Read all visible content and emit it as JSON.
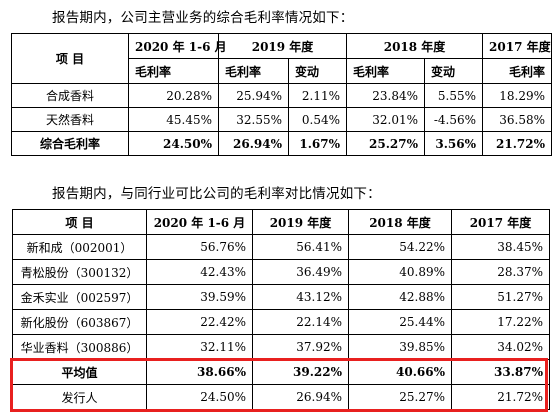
{
  "section1": {
    "intro": "报告期内，公司主营业务的综合毛利率情况如下：",
    "header": {
      "item": "项    目",
      "periods": [
        "2020 年 1-6 月",
        "2019 年度",
        "2018 年度",
        "2017 年度"
      ],
      "gross_margin": "毛利率",
      "change": "变动"
    },
    "rows": [
      {
        "name": "合成香料",
        "v2020": "20.28%",
        "v2019": "25.94%",
        "c2019": "2.11%",
        "v2018": "23.84%",
        "c2018": "5.55%",
        "v2017": "18.29%"
      },
      {
        "name": "天然香料",
        "v2020": "45.45%",
        "v2019": "32.55%",
        "c2019": "0.54%",
        "v2018": "32.01%",
        "c2018": "-4.56%",
        "v2017": "36.58%"
      },
      {
        "name": "综合毛利率",
        "v2020": "24.50%",
        "v2019": "26.94%",
        "c2019": "1.67%",
        "v2018": "25.27%",
        "c2018": "3.56%",
        "v2017": "21.72%"
      }
    ]
  },
  "section2": {
    "intro": "报告期内，与同行业可比公司的毛利率对比情况如下：",
    "header": [
      "项    目",
      "2020 年 1-6 月",
      "2019 年度",
      "2018 年度",
      "2017 年度"
    ],
    "rows": [
      {
        "name": "新和成（002001）",
        "v2020": "56.76%",
        "v2019": "56.41%",
        "v2018": "54.22%",
        "v2017": "38.45%"
      },
      {
        "name": "青松股份（300132）",
        "v2020": "42.43%",
        "v2019": "36.49%",
        "v2018": "40.89%",
        "v2017": "28.37%"
      },
      {
        "name": "金禾实业（002597）",
        "v2020": "39.59%",
        "v2019": "43.12%",
        "v2018": "42.88%",
        "v2017": "51.27%"
      },
      {
        "name": "新化股份（603867）",
        "v2020": "22.42%",
        "v2019": "22.14%",
        "v2018": "25.44%",
        "v2017": "17.22%"
      },
      {
        "name": "华业香料（300886）",
        "v2020": "32.11%",
        "v2019": "37.92%",
        "v2018": "39.85%",
        "v2017": "34.02%"
      },
      {
        "name": "平均值",
        "v2020": "38.66%",
        "v2019": "39.22%",
        "v2018": "40.66%",
        "v2017": "33.87%"
      },
      {
        "name": "发行人",
        "v2020": "24.50%",
        "v2019": "26.94%",
        "v2018": "25.27%",
        "v2017": "21.72%"
      }
    ]
  },
  "colors": {
    "highlight_border": "#e8201f"
  }
}
